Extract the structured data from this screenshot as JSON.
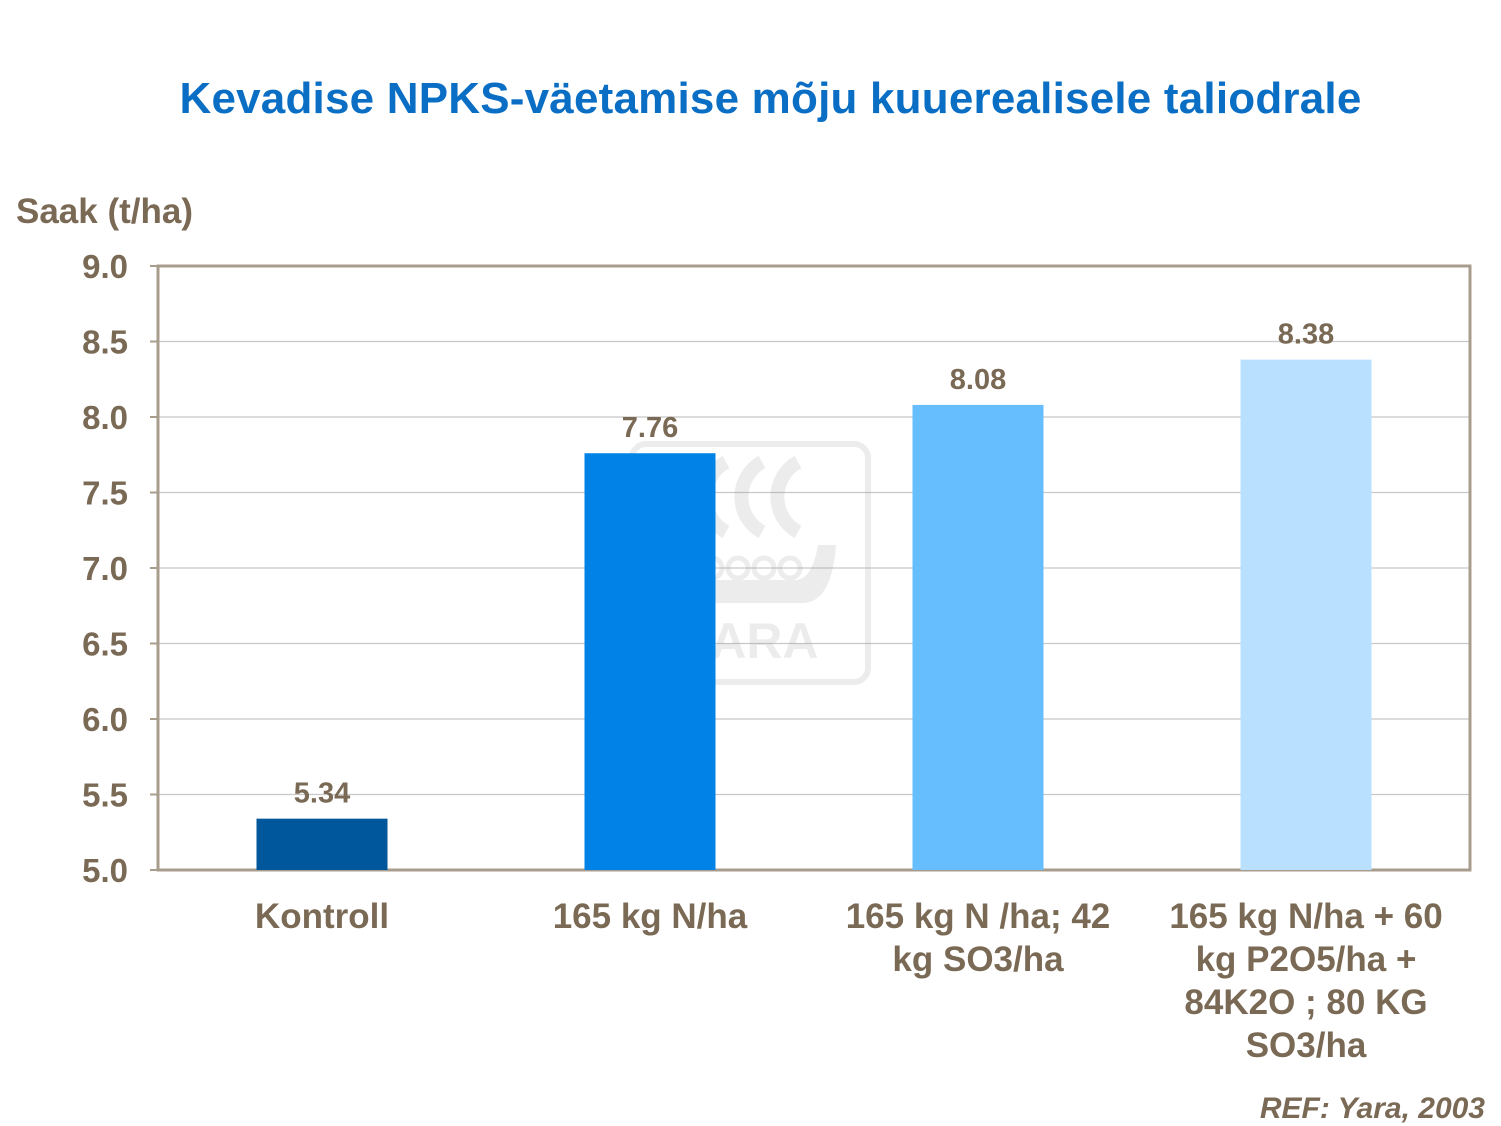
{
  "chart_data": {
    "type": "bar",
    "title": "Kevadise NPKS-väetamise mõju kuuerealisele taliodrale",
    "ylabel": "Saak (t/ha)",
    "xlabel": "",
    "categories": [
      [
        "Kontroll"
      ],
      [
        "165 kg N/ha"
      ],
      [
        "165 kg N /ha; 42",
        "kg SO3/ha"
      ],
      [
        "165 kg N/ha + 60",
        "kg P2O5/ha +",
        "84K2O ; 80 KG",
        "SO3/ha"
      ]
    ],
    "values": [
      5.34,
      7.76,
      8.08,
      8.38
    ],
    "data_labels": [
      "5.34",
      "7.76",
      "8.08",
      "8.38"
    ],
    "bar_colors": [
      "#00579b",
      "#0082e6",
      "#66beff",
      "#b9e0ff"
    ],
    "ylim": [
      5.0,
      9.0
    ],
    "yticks": [
      "5.0",
      "5.5",
      "6.0",
      "6.5",
      "7.0",
      "7.5",
      "8.0",
      "8.5",
      "9.0"
    ],
    "grid": true,
    "reference": "REF: Yara, 2003",
    "watermark": "YARA"
  }
}
